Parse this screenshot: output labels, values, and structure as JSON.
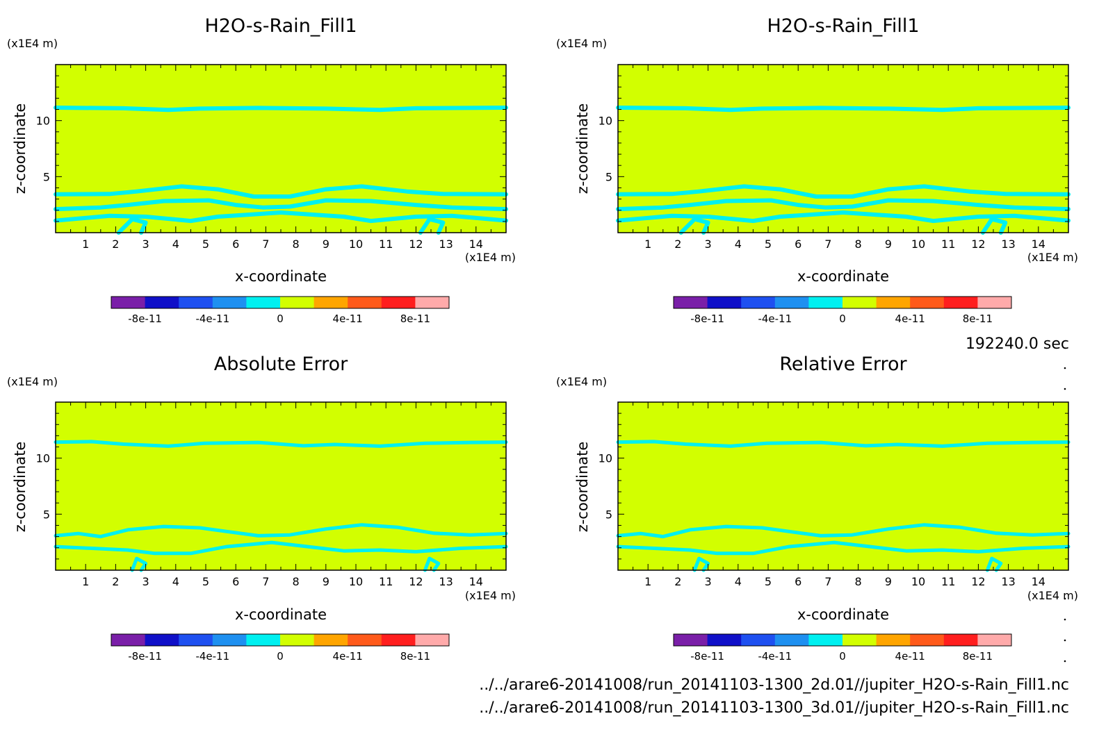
{
  "chart_data": {
    "type": "heatmap",
    "panels": [
      {
        "title": "H2O-s-Rain_Fill1",
        "xlabel": "x-coordinate",
        "ylabel": "z-coordinate",
        "x_unit": "(x1E4 m)",
        "y_unit": "(x1E4 m)",
        "xlim": [
          0,
          15
        ],
        "ylim": [
          0,
          15
        ],
        "x_ticks": [
          1,
          2,
          3,
          4,
          5,
          6,
          7,
          8,
          9,
          10,
          11,
          12,
          13,
          14
        ],
        "y_ticks": [
          5,
          10
        ],
        "field_value": 0,
        "contour_value": 0
      },
      {
        "title": "H2O-s-Rain_Fill1",
        "xlabel": "x-coordinate",
        "ylabel": "z-coordinate",
        "x_unit": "(x1E4 m)",
        "y_unit": "(x1E4 m)",
        "xlim": [
          0,
          15
        ],
        "ylim": [
          0,
          15
        ],
        "x_ticks": [
          1,
          2,
          3,
          4,
          5,
          6,
          7,
          8,
          9,
          10,
          11,
          12,
          13,
          14
        ],
        "y_ticks": [
          5,
          10
        ],
        "field_value": 0,
        "contour_value": 0
      },
      {
        "title": "Absolute Error",
        "xlabel": "x-coordinate",
        "ylabel": "z-coordinate",
        "x_unit": "(x1E4 m)",
        "y_unit": "(x1E4 m)",
        "xlim": [
          0,
          15
        ],
        "ylim": [
          0,
          15
        ],
        "x_ticks": [
          1,
          2,
          3,
          4,
          5,
          6,
          7,
          8,
          9,
          10,
          11,
          12,
          13,
          14
        ],
        "y_ticks": [
          5,
          10
        ],
        "field_value": 0,
        "contour_value": 0
      },
      {
        "title": "Relative Error",
        "xlabel": "x-coordinate",
        "ylabel": "z-coordinate",
        "x_unit": "(x1E4 m)",
        "y_unit": "(x1E4 m)",
        "xlim": [
          0,
          15
        ],
        "ylim": [
          0,
          15
        ],
        "x_ticks": [
          1,
          2,
          3,
          4,
          5,
          6,
          7,
          8,
          9,
          10,
          11,
          12,
          13,
          14
        ],
        "y_ticks": [
          5,
          10
        ],
        "field_value": 0,
        "contour_value": 0
      }
    ],
    "colorbar": {
      "range": [
        -1e-10,
        1e-10
      ],
      "colors": [
        "#7a1fa8",
        "#1010c8",
        "#1e50f0",
        "#1e90f0",
        "#00f0f0",
        "#d2ff00",
        "#ffa500",
        "#ff5a1a",
        "#ff1e1e",
        "#ffaaaa"
      ],
      "tick_labels": [
        "-8e-11",
        "-4e-11",
        "0",
        "4e-11",
        "8e-11"
      ],
      "tick_values": [
        -8e-11,
        -4e-11,
        0,
        4e-11,
        8e-11
      ]
    },
    "time_label": "192240.0 sec",
    "files": [
      "../../arare6-20141008/run_20141103-1300_2d.01//jupiter_H2O-s-Rain_Fill1.nc",
      "../../arare6-20141008/run_20141103-1300_3d.01//jupiter_H2O-s-Rain_Fill1.nc"
    ]
  }
}
